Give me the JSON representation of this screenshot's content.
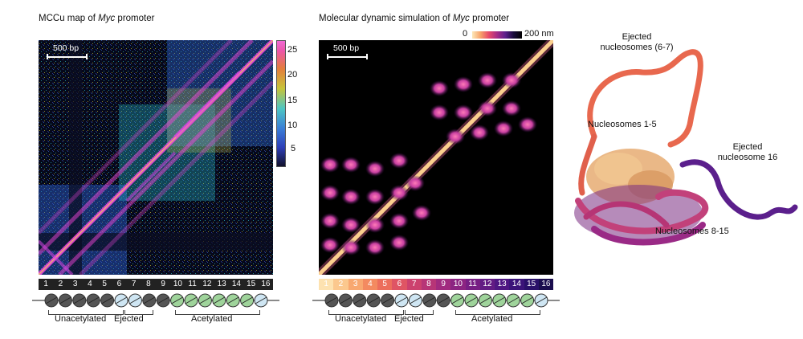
{
  "left_panel": {
    "title_pre": "MCCu map of ",
    "title_italic": "Myc",
    "title_post": " promoter",
    "scale_bar": "500 bp",
    "colorbar_ticks": [
      "25",
      "20",
      "15",
      "10",
      "5"
    ]
  },
  "middle_panel": {
    "title_pre": "Molecular dynamic simulation of ",
    "title_italic": "Myc",
    "title_post": " promoter",
    "scale_bar": "500 bp",
    "colorbar_min": "0",
    "colorbar_max": "200 nm"
  },
  "nucleosome_numbers": [
    "1",
    "2",
    "3",
    "4",
    "5",
    "6",
    "7",
    "8",
    "9",
    "10",
    "11",
    "12",
    "13",
    "14",
    "15",
    "16"
  ],
  "groups": {
    "unacetylated": "Unacetylated",
    "ejected": "Ejected",
    "acetylated": "Acetylated"
  },
  "structure_labels": {
    "ejected_top_line1": "Ejected",
    "ejected_top_line2": "nucleosomes (6-7)",
    "nucleosomes_1_5": "Nucleosomes 1-5",
    "ejected_right_line1": "Ejected",
    "ejected_right_line2": "nucleosome 16",
    "nucleosomes_8_15": "Nucleosomes 8-15"
  },
  "colors": {
    "unacetylated_fill": "#555555",
    "ejected_fill": "#cfe6f3",
    "acetylated_fill": "#9fd49b",
    "magma_light": "#fcd9a8",
    "magma_pink": "#e84a8a",
    "magma_purple": "#5b1f8c"
  }
}
